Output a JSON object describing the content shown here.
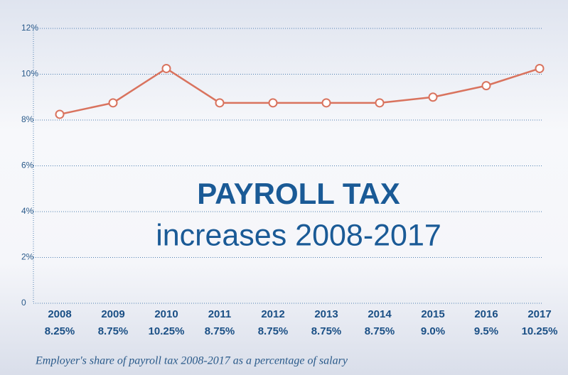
{
  "chart_data": {
    "type": "line",
    "title": "PAYROLL TAX",
    "subtitle": "increases 2008-2017",
    "caption": "Employer's share of payroll tax 2008-2017 as a percentage of salary",
    "categories": [
      "2008",
      "2009",
      "2010",
      "2011",
      "2012",
      "2013",
      "2014",
      "2015",
      "2016",
      "2017"
    ],
    "values": [
      8.25,
      8.75,
      10.25,
      8.75,
      8.75,
      8.75,
      8.75,
      9.0,
      9.5,
      10.25
    ],
    "value_labels": [
      "8.25%",
      "8.75%",
      "10.25%",
      "8.75%",
      "8.75%",
      "8.75%",
      "8.75%",
      "9.0%",
      "9.5%",
      "10.25%"
    ],
    "color": "#d9735e",
    "ylim": [
      0,
      12
    ],
    "yticks": [
      0,
      {
        "value": 2,
        "label": "2%"
      },
      {
        "value": 4,
        "label": "4%"
      },
      {
        "value": 6,
        "label": "6%"
      },
      {
        "value": 8,
        "label": "8%"
      },
      {
        "value": 10,
        "label": "10%"
      },
      {
        "value": 12,
        "label": "12%"
      }
    ],
    "grid": true
  }
}
